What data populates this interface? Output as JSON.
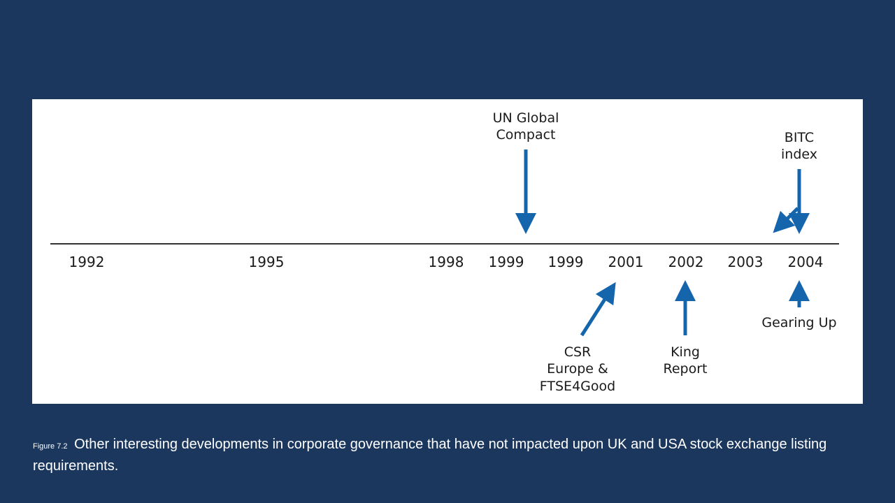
{
  "timeline": {
    "years": [
      "1992",
      "1995",
      "1998",
      "1999",
      "1999",
      "2001",
      "2002",
      "2003",
      "2004"
    ],
    "events_above": [
      {
        "lines": [
          "UN Global",
          "Compact"
        ]
      },
      {
        "lines": [
          "BITC",
          "index"
        ]
      }
    ],
    "events_below": [
      {
        "lines": [
          "CSR",
          "Europe &",
          "FTSE4Good"
        ]
      },
      {
        "lines": [
          "King",
          "Report"
        ]
      },
      {
        "lines": [
          "Gearing Up"
        ]
      }
    ],
    "arrow_color": "#1565ad",
    "axis_color": "#333333"
  },
  "caption": {
    "label": "Figure 7.2",
    "text": "Other interesting developments in corporate governance that have not impacted upon UK and USA stock exchange listing requirements."
  }
}
